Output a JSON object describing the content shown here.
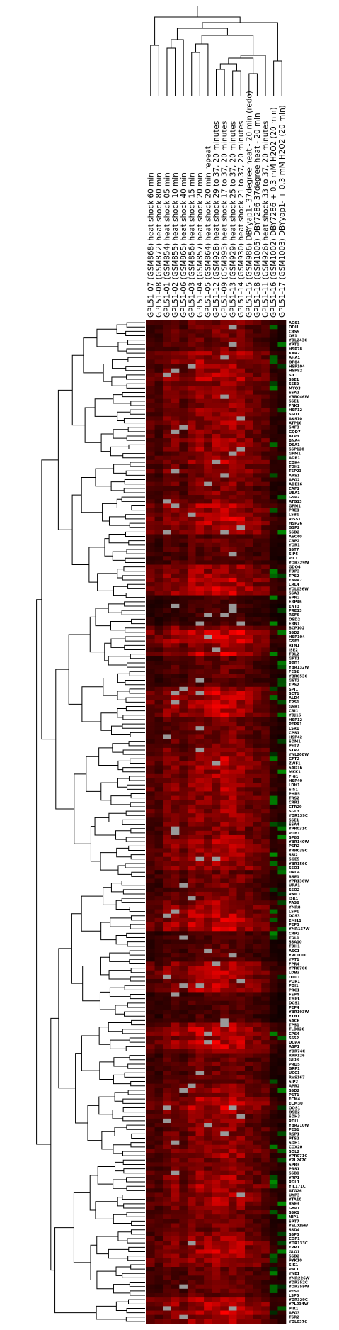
{
  "heatmap": {
    "columns": [
      "GPL51-07 (GSM868) heat shock 60 min",
      "GPL51-08 (GSM872) heat shock 80 min",
      "GPL51-01 (GSM854) heat shock 05 min",
      "GPL51-02 (GSM855) heat shock 10 min",
      "GPL51-06 (GSM865) heat shock 40 min",
      "GPL51-03 (GSM856) heat shock 15 min",
      "GPL51-04 (GSM857) heat shock 20 min",
      "GPL51-05 (GSM864) heat shock 20 min repeat",
      "GPL51-12 (GSM928) heat shock 29 to 37, 20 minutes",
      "GPL51-09 (GSM893) heat shock 17 to 37, 20 minutes",
      "GPL51-13 (GSM929) heat shock 25 to 37, 20 minutes",
      "GPL51-14 (GSM930) heat shock 21 to 37, 20 minutes",
      "GPL51-15 (GSM986) DBYyap1- 37degree heat - 20 min (redo)",
      "GPL51-18 (GSM1005) DBY7286 37degree heat - 20 min",
      "GPL51-11 (GSM926) heat shock 33 to 37, 20 minutes",
      "GPL51-16 (GSM1002) DBY7286 + 0.3 mM H2O2 (20 min)",
      "GPL51-17 (GSM1003) DBYyap1- + 0.3 mM H2O2 (20 min)"
    ],
    "genes": [
      "AGS1",
      "ODI1",
      "CRS5",
      "OS1",
      "YDL243C",
      "YPT1",
      "HSP78",
      "KAR2",
      "AHA1",
      "OP84",
      "HSP104",
      "HSP82",
      "SIC1",
      "SSE1",
      "SSE2",
      "MYO3",
      "SSA2",
      "YBR046W",
      "SSE1",
      "FRK1",
      "HSP12",
      "SSD1",
      "AKS10",
      "ATP1C",
      "SXF3",
      "GQD7",
      "ATP3",
      "BNA4",
      "DSA1",
      "SSP120",
      "GPM1",
      "ADR1",
      "CDK4",
      "TDH2",
      "TSP23",
      "ARS1",
      "AFG2",
      "ADE16",
      "CAF1",
      "UBA1",
      "GSP2",
      "ATG13",
      "GPM1",
      "PRE1",
      "LSB1",
      "RIS51",
      "HSP26",
      "GSP2",
      "SSD2",
      "ASC40",
      "CRP2",
      "YOR1",
      "SST7",
      "SIP5",
      "PIL1",
      "YOR329W",
      "GDO4",
      "TDP3",
      "TPS2",
      "ENP47",
      "CRL4",
      "YOL036W",
      "SSA3",
      "SPN2",
      "ERP46",
      "ENT3",
      "PRE13",
      "RSF6",
      "OSD2",
      "ERN1",
      "BCP102",
      "SSD2",
      "HSP104",
      "GSE3",
      "RTN1",
      "ISE2",
      "TDL2",
      "GPT1",
      "RPD1",
      "YBR132W",
      "FES2",
      "YBR053C",
      "GST2",
      "TPS2",
      "SPI1",
      "SCT1",
      "ALD4",
      "TPS1",
      "GSB1",
      "CRI1",
      "YDJ16",
      "HSP12",
      "PFPR1",
      "LSR1",
      "CPS1",
      "HSP42",
      "SDM1",
      "PET2",
      "STR2",
      "YNL208W",
      "GFT2",
      "ZWF1",
      "SAD16",
      "MKK1",
      "FIG1",
      "HSP40",
      "LDH1",
      "SIS1",
      "PHR5",
      "TRS2",
      "CRR1",
      "CTR29",
      "SGL3",
      "YDR139C",
      "SSE1",
      "SSA4",
      "YPR031C",
      "PDB1",
      "SP83",
      "YBR140W",
      "PSR2",
      "YRR039C",
      "SSI2",
      "SGE5",
      "YBR156C",
      "SSO1",
      "URC4",
      "RSE1",
      "YPR136W",
      "URA1",
      "SSO2",
      "RMC1",
      "ISR1",
      "PAS8",
      "YMR8",
      "LSP1",
      "DCS3",
      "EMI11",
      "PEP3",
      "YMR157W",
      "CRP2",
      "TDL1",
      "SSA10",
      "TDH1",
      "ASC1",
      "YRL100C",
      "YPT1",
      "FPR4",
      "YPR076C",
      "LDB3",
      "OTU1",
      "POR1",
      "PDI1",
      "PRC1",
      "FEP4",
      "TMPL",
      "DCS1",
      "PEP4",
      "YBR193W",
      "YTH1",
      "SAC6",
      "TPS1",
      "TLD02C",
      "CPS4",
      "SSS2",
      "DOA4",
      "ASP1",
      "YDR74C",
      "RRP126",
      "GID8",
      "PRD5",
      "GRP1",
      "UCC1",
      "RVS167",
      "SIP2",
      "APR2",
      "SSD2",
      "PST1",
      "ECM4",
      "ECM30",
      "OOS1",
      "OSB2",
      "SDH3",
      "RDI1",
      "YBR210W",
      "PES1",
      "RSP1",
      "PTS2",
      "SDH1",
      "COX20",
      "SOL2",
      "YPR071C",
      "YPL247C",
      "SPR3",
      "PRS1",
      "SSB1",
      "YRP1",
      "RGL1",
      "YIL171C",
      "ATG26",
      "UYP3",
      "YTA10",
      "RSE3",
      "GYP1",
      "SSK1",
      "NIP1",
      "SPT7",
      "YEL025W",
      "SSD4",
      "SSP3",
      "COP1",
      "YDR133C",
      "ERR1",
      "GLO1",
      "SSD2",
      "PYK10",
      "SIK1",
      "PAL1",
      "YNE1",
      "YMR226W",
      "YDR352C",
      "YOR359W",
      "PES1",
      "LSP5",
      "YDR329C",
      "YPL034W",
      "PIR1",
      "AFG3",
      "TSR2",
      "YDL037C"
    ]
  },
  "colors": {
    "background": "#ffffff",
    "heatmap_base": "#000000",
    "up_regulated": "#ff0000",
    "down_regulated": "#00b400",
    "missing": "#999999",
    "tree_line": "#000000"
  }
}
